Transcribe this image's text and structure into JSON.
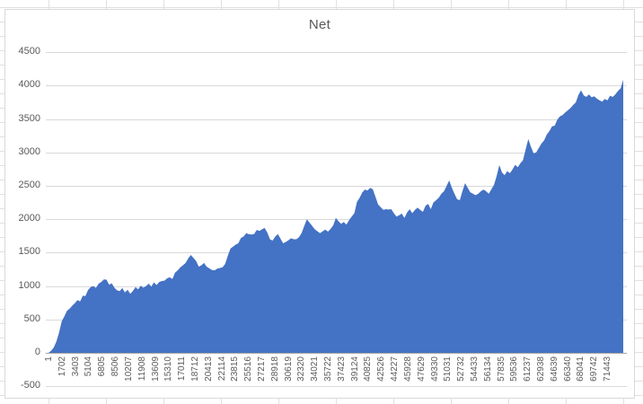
{
  "chart_data": {
    "type": "area",
    "title": "Net",
    "xlabel": "",
    "ylabel": "",
    "legend": "none",
    "grid": "horizontal",
    "ylim": [
      -500,
      4500
    ],
    "y_tick_step": 500,
    "y_ticks_top_to_bottom": [
      4500,
      4000,
      3500,
      3000,
      2500,
      2000,
      1500,
      1000,
      500,
      0,
      -500
    ],
    "x_tick_labels": [
      "1",
      "1702",
      "3403",
      "5104",
      "6805",
      "8506",
      "10207",
      "11908",
      "13609",
      "15310",
      "17011",
      "18712",
      "20413",
      "22114",
      "23815",
      "25516",
      "27217",
      "28918",
      "30619",
      "32320",
      "34021",
      "35722",
      "37423",
      "39124",
      "40825",
      "42526",
      "44227",
      "45928",
      "47629",
      "49330",
      "51031",
      "52732",
      "54433",
      "56134",
      "57835",
      "59536",
      "61237",
      "62938",
      "64639",
      "66340",
      "68041",
      "69742",
      "71443"
    ],
    "x_tick_interval": 1701,
    "colors": {
      "area_fill": "#4472C4",
      "gridline": "#D9D9D9",
      "axis_line": "#A6A6A6",
      "axis_text": "#595959",
      "title_text": "#595959",
      "chart_border": "#D9D9D9",
      "sheet_gridline": "#E0E0E0"
    },
    "series": [
      {
        "name": "Net",
        "sampling": "evenly spaced across x-axis, values estimated from plot",
        "values": [
          0,
          30,
          80,
          170,
          300,
          470,
          545,
          630,
          660,
          705,
          745,
          790,
          770,
          855,
          850,
          940,
          985,
          1000,
          970,
          1035,
          1060,
          1100,
          1095,
          1020,
          1040,
          975,
          935,
          925,
          970,
          905,
          945,
          885,
          925,
          985,
          950,
          1005,
          975,
          1000,
          1035,
          990,
          1055,
          1015,
          1060,
          1075,
          1080,
          1115,
          1130,
          1105,
          1200,
          1235,
          1280,
          1310,
          1345,
          1415,
          1465,
          1420,
          1375,
          1290,
          1310,
          1345,
          1290,
          1265,
          1240,
          1235,
          1260,
          1270,
          1280,
          1330,
          1450,
          1560,
          1590,
          1620,
          1640,
          1720,
          1740,
          1790,
          1775,
          1770,
          1780,
          1840,
          1825,
          1850,
          1870,
          1800,
          1700,
          1680,
          1740,
          1780,
          1710,
          1640,
          1660,
          1685,
          1715,
          1700,
          1700,
          1730,
          1790,
          1900,
          2000,
          1950,
          1900,
          1850,
          1820,
          1790,
          1820,
          1845,
          1815,
          1855,
          1910,
          2020,
          1970,
          1930,
          1960,
          1920,
          1985,
          2040,
          2090,
          2260,
          2320,
          2400,
          2445,
          2430,
          2470,
          2450,
          2340,
          2220,
          2180,
          2140,
          2150,
          2145,
          2150,
          2090,
          2040,
          2060,
          2085,
          2020,
          2100,
          2150,
          2090,
          2140,
          2175,
          2140,
          2110,
          2200,
          2230,
          2150,
          2250,
          2285,
          2320,
          2380,
          2420,
          2500,
          2580,
          2470,
          2380,
          2300,
          2285,
          2420,
          2540,
          2470,
          2405,
          2380,
          2360,
          2380,
          2420,
          2445,
          2420,
          2380,
          2450,
          2515,
          2650,
          2810,
          2700,
          2660,
          2720,
          2690,
          2745,
          2815,
          2780,
          2840,
          2885,
          3050,
          3200,
          3085,
          2985,
          3000,
          3070,
          3135,
          3180,
          3270,
          3320,
          3390,
          3400,
          3490,
          3540,
          3560,
          3600,
          3630,
          3665,
          3710,
          3750,
          3860,
          3930,
          3855,
          3830,
          3870,
          3825,
          3840,
          3805,
          3780,
          3760,
          3800,
          3780,
          3850,
          3830,
          3870,
          3920,
          3960,
          4090
        ]
      }
    ]
  }
}
